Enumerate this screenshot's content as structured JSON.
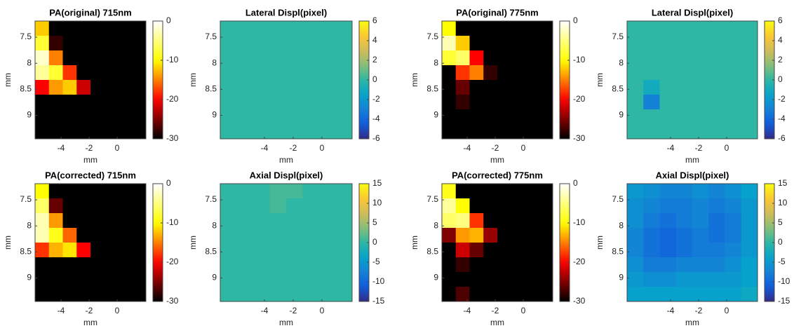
{
  "chart_data": [
    {
      "type": "heatmap",
      "title": "PA(original) 715nm",
      "xlabel": "mm",
      "ylabel": "mm",
      "colormap": "hot",
      "xlim": [
        -5.85,
        2.05
      ],
      "ylim": [
        9.45,
        7.19
      ],
      "xticks": [
        -4,
        -2,
        0
      ],
      "yticks": [
        7.5,
        8,
        8.5,
        9
      ],
      "clim": [
        -30,
        0
      ],
      "cticks": [
        -30,
        -20,
        -10,
        0
      ],
      "values": [
        [
          -12,
          -30,
          -30,
          -30,
          -30,
          -30,
          -30,
          -30
        ],
        [
          -8,
          -28,
          -30,
          -30,
          -30,
          -30,
          -30,
          -30
        ],
        [
          -2,
          -15,
          -30,
          -30,
          -30,
          -30,
          -30,
          -30
        ],
        [
          -4,
          -8,
          -18,
          -30,
          -30,
          -30,
          -30,
          -30
        ],
        [
          -20,
          -14,
          -12,
          -22,
          -30,
          -30,
          -30,
          -30
        ],
        [
          -30,
          -30,
          -30,
          -30,
          -30,
          -30,
          -30,
          -30
        ],
        [
          -30,
          -30,
          -30,
          -30,
          -30,
          -30,
          -30,
          -30
        ],
        [
          -30,
          -30,
          -30,
          -30,
          -30,
          -30,
          -30,
          -30
        ]
      ]
    },
    {
      "type": "heatmap",
      "title": "Lateral Displ(pixel)",
      "xlabel": "mm",
      "ylabel": "mm",
      "colormap": "parula",
      "xlim": [
        -7.07,
        2.1
      ],
      "ylim": [
        9.45,
        7.19
      ],
      "xticks": [
        -4,
        -2,
        0
      ],
      "yticks": [
        7.5,
        8,
        8.5,
        9
      ],
      "clim": [
        -6,
        6
      ],
      "cticks": [
        -6,
        -4,
        -2,
        0,
        2,
        4,
        6
      ],
      "values": [
        [
          0,
          0,
          0,
          0,
          0,
          0,
          0,
          0
        ],
        [
          0,
          0,
          0,
          0,
          0,
          0,
          0,
          0
        ],
        [
          0,
          0,
          0,
          0,
          0,
          0,
          0,
          0
        ],
        [
          0,
          0,
          0,
          0,
          0,
          0,
          0,
          0
        ],
        [
          0,
          0,
          0,
          0,
          0,
          0,
          0,
          0
        ],
        [
          0,
          0,
          0,
          0,
          0,
          0,
          0,
          0
        ],
        [
          0,
          0,
          0,
          0,
          0,
          0,
          0,
          0
        ],
        [
          0,
          0,
          0,
          0,
          0,
          0,
          0,
          0
        ]
      ]
    },
    {
      "type": "heatmap",
      "title": "PA(original) 775nm",
      "xlabel": "mm",
      "ylabel": "mm",
      "colormap": "hot",
      "xlim": [
        -5.8,
        2.1
      ],
      "ylim": [
        9.45,
        7.19
      ],
      "xticks": [
        -4,
        -2,
        0
      ],
      "yticks": [
        7.5,
        8,
        8.5,
        9
      ],
      "clim": [
        -30,
        0
      ],
      "cticks": [
        -30,
        -20,
        -10,
        0
      ],
      "values": [
        [
          -10,
          -30,
          -30,
          -30,
          -30,
          -30,
          -30,
          -30
        ],
        [
          -3,
          -12,
          -30,
          -30,
          -30,
          -30,
          -30,
          -30
        ],
        [
          -8,
          -6,
          -20,
          -30,
          -30,
          -30,
          -30,
          -30
        ],
        [
          -30,
          -18,
          -15,
          -28,
          -30,
          -30,
          -30,
          -30
        ],
        [
          -30,
          -26,
          -30,
          -30,
          -30,
          -30,
          -30,
          -30
        ],
        [
          -30,
          -28,
          -30,
          -30,
          -30,
          -30,
          -30,
          -30
        ],
        [
          -30,
          -30,
          -30,
          -30,
          -30,
          -30,
          -30,
          -30
        ],
        [
          -30,
          -30,
          -30,
          -30,
          -30,
          -30,
          -30,
          -30
        ]
      ]
    },
    {
      "type": "heatmap",
      "title": "Lateral Displ(pixel)",
      "xlabel": "mm",
      "ylabel": "mm",
      "colormap": "parula",
      "xlim": [
        -7.1,
        2.2
      ],
      "ylim": [
        9.45,
        7.19
      ],
      "xticks": [
        -4,
        -2,
        0
      ],
      "yticks": [
        7.5,
        8,
        8.5,
        9
      ],
      "clim": [
        -6,
        6
      ],
      "cticks": [
        -6,
        -4,
        -2,
        0,
        2,
        4,
        6
      ],
      "values": [
        [
          0,
          0,
          0,
          0,
          0,
          0,
          0,
          0
        ],
        [
          0,
          0,
          0,
          0,
          0,
          0,
          0,
          0
        ],
        [
          0,
          0,
          0,
          0,
          0,
          0,
          0,
          0
        ],
        [
          0,
          0,
          0,
          0,
          0,
          0,
          0,
          0
        ],
        [
          0,
          -1,
          0,
          0,
          0,
          0,
          0,
          0
        ],
        [
          0,
          -3,
          0,
          0,
          0,
          0,
          0,
          0
        ],
        [
          0,
          0,
          0,
          0,
          0,
          0,
          0,
          0
        ],
        [
          0,
          0,
          0,
          0,
          0,
          0,
          0,
          0
        ]
      ]
    },
    {
      "type": "heatmap",
      "title": "PA(corrected) 715nm",
      "xlabel": "mm",
      "ylabel": "mm",
      "colormap": "hot",
      "xlim": [
        -5.85,
        2.05
      ],
      "ylim": [
        9.45,
        7.19
      ],
      "xticks": [
        -4,
        -2,
        0
      ],
      "yticks": [
        7.5,
        8,
        8.5,
        9
      ],
      "clim": [
        -30,
        0
      ],
      "cticks": [
        -30,
        -20,
        -10,
        0
      ],
      "values": [
        [
          -10,
          -30,
          -30,
          -30,
          -30,
          -30,
          -30,
          -30
        ],
        [
          -6,
          -26,
          -30,
          -30,
          -30,
          -30,
          -30,
          -30
        ],
        [
          -3,
          -14,
          -30,
          -30,
          -30,
          -30,
          -30,
          -30
        ],
        [
          -3,
          -9,
          -16,
          -30,
          -30,
          -30,
          -30,
          -30
        ],
        [
          -18,
          -13,
          -11,
          -20,
          -30,
          -30,
          -30,
          -30
        ],
        [
          -30,
          -30,
          -30,
          -30,
          -30,
          -30,
          -30,
          -30
        ],
        [
          -30,
          -30,
          -30,
          -30,
          -30,
          -30,
          -30,
          -30
        ],
        [
          -30,
          -30,
          -30,
          -30,
          -30,
          -30,
          -30,
          -30
        ]
      ]
    },
    {
      "type": "heatmap",
      "title": "Axial Displ(pixel)",
      "xlabel": "mm",
      "ylabel": "mm",
      "colormap": "parula",
      "xlim": [
        -7.07,
        2.1
      ],
      "ylim": [
        9.45,
        7.19
      ],
      "xticks": [
        -4,
        -2,
        0
      ],
      "yticks": [
        7.5,
        8,
        8.5,
        9
      ],
      "clim": [
        -15,
        15
      ],
      "cticks": [
        -15,
        -10,
        -5,
        0,
        5,
        10,
        15
      ],
      "values": [
        [
          0,
          0,
          0,
          1,
          1,
          0,
          0,
          0
        ],
        [
          0,
          0,
          0,
          1,
          0,
          0,
          0,
          0
        ],
        [
          0,
          0,
          0,
          0,
          0,
          0,
          0,
          0
        ],
        [
          0,
          0,
          0,
          0,
          0,
          0,
          0,
          0
        ],
        [
          0,
          0,
          0,
          0,
          0,
          0,
          0,
          0
        ],
        [
          0,
          0,
          0,
          0,
          0,
          0,
          0,
          0
        ],
        [
          0,
          0,
          0,
          0,
          0,
          0,
          0,
          0
        ],
        [
          0,
          0,
          0,
          0,
          0,
          0,
          0,
          0
        ]
      ]
    },
    {
      "type": "heatmap",
      "title": "PA(corrected) 775nm",
      "xlabel": "mm",
      "ylabel": "mm",
      "colormap": "hot",
      "xlim": [
        -5.8,
        2.1
      ],
      "ylim": [
        9.45,
        7.19
      ],
      "xticks": [
        -4,
        -2,
        0
      ],
      "yticks": [
        7.5,
        8,
        8.5,
        9
      ],
      "clim": [
        -30,
        0
      ],
      "cticks": [
        -30,
        -20,
        -10,
        0
      ],
      "values": [
        [
          -9,
          -30,
          -30,
          -30,
          -30,
          -30,
          -30,
          -30
        ],
        [
          -4,
          -10,
          -30,
          -30,
          -30,
          -30,
          -30,
          -30
        ],
        [
          -6,
          -5,
          -18,
          -30,
          -30,
          -30,
          -30,
          -30
        ],
        [
          -25,
          -14,
          -13,
          -24,
          -30,
          -30,
          -30,
          -30
        ],
        [
          -30,
          -22,
          -26,
          -30,
          -30,
          -30,
          -30,
          -30
        ],
        [
          -30,
          -28,
          -30,
          -30,
          -30,
          -30,
          -30,
          -30
        ],
        [
          -30,
          -30,
          -30,
          -30,
          -30,
          -30,
          -30,
          -30
        ],
        [
          -30,
          -27,
          -30,
          -30,
          -30,
          -30,
          -30,
          -30
        ]
      ]
    },
    {
      "type": "heatmap",
      "title": "Axial Displ(pixel)",
      "xlabel": "mm",
      "ylabel": "mm",
      "colormap": "parula",
      "xlim": [
        -7.1,
        2.2
      ],
      "ylim": [
        9.45,
        7.19
      ],
      "xticks": [
        -4,
        -2,
        0
      ],
      "yticks": [
        7.5,
        8,
        8.5,
        9
      ],
      "clim": [
        -15,
        15
      ],
      "cticks": [
        -15,
        -10,
        -5,
        0,
        5,
        10,
        15
      ],
      "values": [
        [
          -5,
          -6,
          -7,
          -7,
          -6,
          -7,
          -6,
          -4
        ],
        [
          -6,
          -7,
          -8,
          -8,
          -7,
          -8,
          -7,
          -5
        ],
        [
          -6,
          -8,
          -9,
          -8,
          -7,
          -9,
          -8,
          -5
        ],
        [
          -7,
          -9,
          -10,
          -9,
          -8,
          -9,
          -8,
          -5
        ],
        [
          -7,
          -9,
          -10,
          -9,
          -8,
          -8,
          -7,
          -5
        ],
        [
          -6,
          -8,
          -8,
          -7,
          -7,
          -7,
          -6,
          -4
        ],
        [
          -5,
          -6,
          -6,
          -5,
          -5,
          -5,
          -5,
          -4
        ],
        [
          -4,
          -4,
          -4,
          -4,
          -4,
          -4,
          -4,
          -3
        ]
      ]
    }
  ]
}
